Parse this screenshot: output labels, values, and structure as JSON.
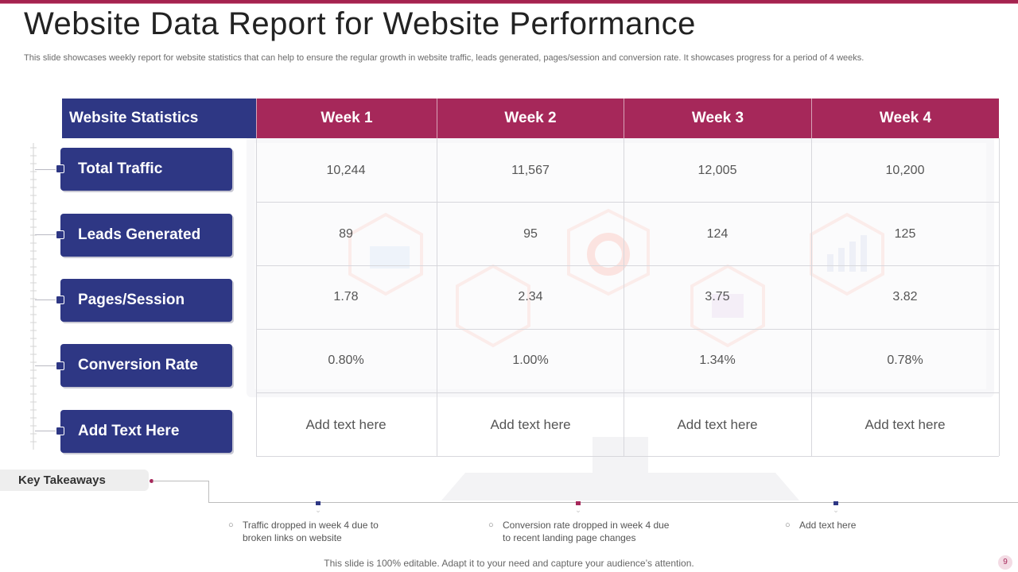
{
  "title": "Website Data Report for Website Performance",
  "subtitle": "This slide showcases weekly report for website statistics that can help to ensure the regular growth in website traffic, leads generated, pages/session and conversion rate. It showcases progress for a period of 4 weeks.",
  "colors": {
    "navy": "#2e3784",
    "maroon": "#a6285a"
  },
  "table": {
    "header_first": "Website Statistics",
    "weeks": [
      "Week 1",
      "Week 2",
      "Week 3",
      "Week 4"
    ],
    "rows": [
      {
        "label": "Total Traffic",
        "values": [
          "10,244",
          "11,567",
          "12,005",
          "10,200"
        ]
      },
      {
        "label": "Leads Generated",
        "values": [
          "89",
          "95",
          "124",
          "125"
        ]
      },
      {
        "label": "Pages/Session",
        "values": [
          "1.78",
          "2.34",
          "3.75",
          "3.82"
        ]
      },
      {
        "label": "Conversion Rate",
        "values": [
          "0.80%",
          "1.00%",
          "1.34%",
          "0.78%"
        ]
      },
      {
        "label": "Add Text Here",
        "values": [
          "Add text here",
          "Add text here",
          "Add text here",
          "Add text here"
        ]
      }
    ]
  },
  "takeaways": {
    "label": "Key Takeaways",
    "items": [
      {
        "line1": "Traffic  dropped  in week 4 due to",
        "line2": "broken links on website"
      },
      {
        "line1": "Conversion  rate dropped  in week 4 due",
        "line2": "to recent landing page changes"
      },
      {
        "line1": "Add text here",
        "line2": ""
      }
    ]
  },
  "footer": "This slide is 100% editable. Adapt it to your need and capture your audience’s attention.",
  "page_number": "9"
}
